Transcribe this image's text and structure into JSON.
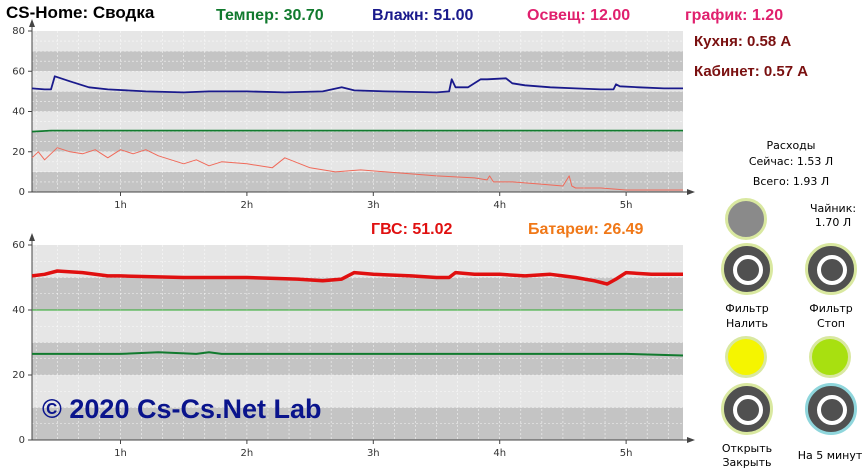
{
  "app": {
    "title": "CS-Home: Сводка"
  },
  "header": {
    "temp": "Темпер: 30.70",
    "humidity": "Влажн: 51.00",
    "light": "Освещ: 12.00",
    "graph": "график: 1.20"
  },
  "side": {
    "kitchen": "Кухня: 0.58 A",
    "office": "Кабинет: 0.57 A"
  },
  "mid": {
    "gvs": "ГВС: 51.02",
    "batteries": "Батареи: 26.49"
  },
  "colors": {
    "temp": "#117a2e",
    "humidity": "#1a1a8c",
    "light": "#e0206e",
    "graph": "#e0206e",
    "gvs": "#e01010",
    "batteries": "#f07818",
    "side": "#7a1010",
    "copyright": "#0a148c"
  },
  "water": {
    "title": "Расходы",
    "now": "Сейчас: 1.53 Л",
    "total": "Всего: 1.93 Л",
    "kettle_label": "Чайник:",
    "kettle_value": "1.70 Л"
  },
  "buttons": {
    "filter_fill_line1": "Фильтр",
    "filter_fill_line2": "Налить",
    "filter_stop_line1": "Фильтр",
    "filter_stop_line2": "Стоп",
    "open_line1": "Открыть",
    "close_line2": "Закрыть",
    "five_min": "На 5 минут"
  },
  "indicators": {
    "gray_lamp_color": "#8a8a8a",
    "yellow_lamp_color": "#f5f500",
    "green_lamp_color": "#a8e010"
  },
  "copyright": "© 2020 Cs-Cs.Net Lab",
  "chart_data": [
    {
      "type": "line",
      "x_unit": "hours",
      "xlim": [
        0.3,
        5.45
      ],
      "ylim": [
        0,
        80
      ],
      "x_ticks": [
        {
          "value": 1,
          "label": "1h"
        },
        {
          "value": 2,
          "label": "2h"
        },
        {
          "value": 3,
          "label": "3h"
        },
        {
          "value": 4,
          "label": "4h"
        },
        {
          "value": 5,
          "label": "5h"
        }
      ],
      "y_ticks": [
        0,
        20,
        40,
        60,
        80
      ],
      "grid": true,
      "series": [
        {
          "color": "#1a1a8c",
          "x": [
            0.3,
            0.4,
            0.45,
            0.48,
            0.6,
            0.75,
            0.9,
            1.2,
            1.5,
            1.7,
            2.0,
            2.3,
            2.6,
            2.75,
            2.85,
            3.1,
            3.5,
            3.6,
            3.62,
            3.65,
            3.75,
            3.85,
            3.9,
            4.05,
            4.1,
            4.2,
            4.4,
            4.6,
            4.8,
            4.9,
            4.92,
            4.95,
            5.1,
            5.3,
            5.45
          ],
          "y": [
            51.5,
            51,
            51,
            57.5,
            55,
            52,
            51,
            50,
            49.5,
            50,
            50,
            49.5,
            50,
            52,
            50.5,
            50,
            49.5,
            50,
            56,
            52,
            52,
            56,
            56,
            56.5,
            54,
            53,
            52,
            51.5,
            51,
            51,
            53.5,
            52.5,
            52,
            51.5,
            51.5
          ]
        },
        {
          "color": "#117a2e",
          "x": [
            0.3,
            0.45,
            1.0,
            2.0,
            3.0,
            4.0,
            5.0,
            5.45
          ],
          "y": [
            30,
            30.5,
            30.5,
            30.5,
            30.5,
            30.5,
            30.5,
            30.5
          ]
        },
        {
          "color": "#f06a5a",
          "x": [
            0.3,
            0.35,
            0.4,
            0.5,
            0.6,
            0.7,
            0.8,
            0.9,
            1.0,
            1.1,
            1.2,
            1.3,
            1.5,
            1.6,
            1.7,
            1.8,
            2.0,
            2.2,
            2.3,
            2.5,
            2.7,
            2.9,
            3.1,
            3.3,
            3.5,
            3.8,
            3.9,
            3.92,
            3.95,
            4.1,
            4.3,
            4.5,
            4.55,
            4.57,
            4.6,
            4.8,
            5.0,
            5.2,
            5.45
          ],
          "y": [
            17,
            20,
            16,
            22,
            20,
            19,
            21,
            17,
            21,
            19,
            21,
            18,
            14,
            16,
            13,
            15,
            14,
            12,
            17,
            12,
            10,
            11,
            10,
            9,
            8,
            7,
            6,
            8,
            5,
            5,
            4,
            3,
            8,
            3,
            2,
            2,
            1,
            1,
            1
          ]
        }
      ]
    },
    {
      "type": "line",
      "x_unit": "hours",
      "xlim": [
        0.3,
        5.45
      ],
      "ylim": [
        0,
        60
      ],
      "x_ticks": [
        {
          "value": 1,
          "label": "1h"
        },
        {
          "value": 2,
          "label": "2h"
        },
        {
          "value": 3,
          "label": "3h"
        },
        {
          "value": 4,
          "label": "4h"
        },
        {
          "value": 5,
          "label": "5h"
        }
      ],
      "y_ticks": [
        0,
        20,
        40,
        60
      ],
      "grid": true,
      "series": [
        {
          "color": "#e01010",
          "x": [
            0.3,
            0.4,
            0.5,
            0.7,
            0.9,
            1.0,
            1.5,
            2.0,
            2.4,
            2.6,
            2.75,
            2.85,
            3.0,
            3.3,
            3.5,
            3.6,
            3.65,
            3.8,
            4.0,
            4.2,
            4.4,
            4.5,
            4.6,
            4.75,
            4.85,
            4.92,
            5.0,
            5.2,
            5.45
          ],
          "y": [
            50.5,
            51,
            52,
            51.5,
            50.5,
            50.5,
            50,
            50,
            49.5,
            49,
            49.5,
            51.5,
            51,
            50.5,
            50,
            50,
            51.5,
            51,
            51,
            50.5,
            51,
            50.5,
            50,
            49,
            48,
            49.5,
            51.5,
            51,
            51
          ]
        },
        {
          "color": "#2aa82a",
          "x": [
            0.3,
            5.45
          ],
          "y": [
            40,
            40
          ]
        },
        {
          "color": "#117a2e",
          "x": [
            0.3,
            0.7,
            1.0,
            1.3,
            1.6,
            1.7,
            1.8,
            2.0,
            3.0,
            4.0,
            5.0,
            5.45
          ],
          "y": [
            26.5,
            26.5,
            26.5,
            27,
            26.5,
            27,
            26.5,
            26.5,
            26.5,
            26.5,
            26.5,
            26
          ]
        }
      ]
    }
  ]
}
